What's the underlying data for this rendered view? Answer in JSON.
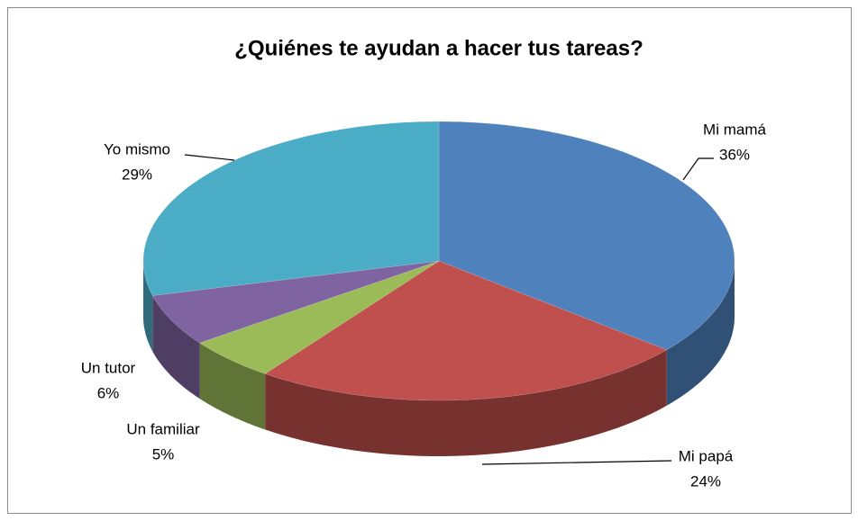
{
  "chart_data": {
    "type": "pie3d",
    "title": "¿Quiénes te ayudan a hacer tus tareas?",
    "categories": [
      "Mi mamá",
      "Mi papá",
      "Un familiar",
      "Un tutor",
      "Yo mismo"
    ],
    "values": [
      36,
      24,
      5,
      6,
      29
    ],
    "value_labels": [
      "36%",
      "24%",
      "5%",
      "6%",
      "29%"
    ],
    "colors": [
      "#4f81bd",
      "#c0504d",
      "#9bbb59",
      "#8064a2",
      "#4bacc6"
    ]
  }
}
